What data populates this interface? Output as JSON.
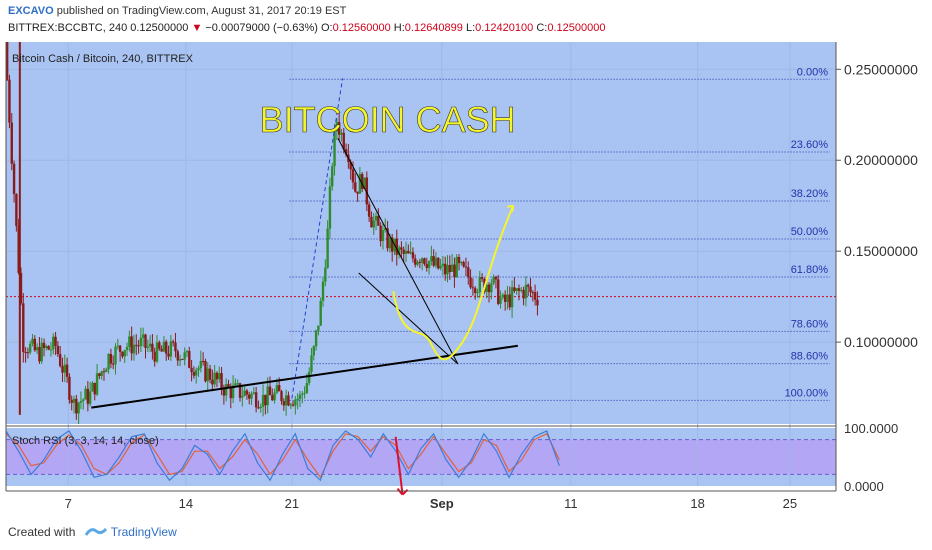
{
  "header": {
    "author": "EXCAVO",
    "published": " published on TradingView.com, August 31, 2017 20:19 EST",
    "symbol": "BITTREX:BCCBTC, 240  0.12500000",
    "change": " −0.00079000 (−0.63%)",
    "o_label": " O:",
    "o_value": "0.12560000",
    "h_label": " H:",
    "h_value": "0.12640899",
    "l_label": " L:",
    "l_value": "0.12420100",
    "c_label": " C:",
    "c_value": "0.12500000"
  },
  "chart_data": {
    "type": "candlestick",
    "title": "BITCOIN CASH",
    "pane_label": "Bitcoin Cash / Bitcoin, 240, BITTREX",
    "colors": {
      "background": "#a9c4f2",
      "up": "#2e8b2e",
      "down": "#8b1a1a",
      "title": "#f5f52a",
      "fib": "#2233aa",
      "projection": "#f5f52a",
      "stoch_band": "#b3a6f5",
      "stoch_k": "#3d7dd8",
      "stoch_d": "#e0623a",
      "arrow": "#e0102a",
      "last_price_line": "#d0021b"
    },
    "ylim": [
      0.055,
      0.265
    ],
    "y_ticks": [
      "0.25000000",
      "0.20000000",
      "0.15000000",
      "0.10000000"
    ],
    "x_ticks": [
      "7",
      "14",
      "21",
      "Sep",
      "11",
      "18",
      "25"
    ],
    "fib_levels": [
      {
        "label": "0.00%",
        "price": 0.2445
      },
      {
        "label": "23.60%",
        "price": 0.2045
      },
      {
        "label": "38.20%",
        "price": 0.1776
      },
      {
        "label": "50.00%",
        "price": 0.1567
      },
      {
        "label": "61.80%",
        "price": 0.1358
      },
      {
        "label": "78.60%",
        "price": 0.1059
      },
      {
        "label": "88.60%",
        "price": 0.0882
      },
      {
        "label": "100.00%",
        "price": 0.068
      }
    ],
    "last_price": 0.125,
    "price_path": [
      [
        0,
        0.265
      ],
      [
        8,
        0.1
      ],
      [
        14,
        0.094
      ],
      [
        22,
        0.098
      ],
      [
        30,
        0.066
      ],
      [
        37,
        0.071
      ],
      [
        45,
        0.092
      ],
      [
        52,
        0.098
      ],
      [
        59,
        0.099
      ],
      [
        66,
        0.094
      ],
      [
        74,
        0.096
      ],
      [
        81,
        0.088
      ],
      [
        89,
        0.082
      ],
      [
        96,
        0.074
      ],
      [
        104,
        0.072
      ],
      [
        112,
        0.069
      ],
      [
        118,
        0.071
      ],
      [
        124,
        0.07
      ],
      [
        128,
        0.069
      ],
      [
        131,
        0.078
      ],
      [
        134,
        0.095
      ],
      [
        137,
        0.12
      ],
      [
        140,
        0.16
      ],
      [
        142,
        0.2
      ],
      [
        144,
        0.222
      ],
      [
        146,
        0.214
      ],
      [
        149,
        0.205
      ],
      [
        152,
        0.184
      ],
      [
        155,
        0.19
      ],
      [
        159,
        0.168
      ],
      [
        163,
        0.16
      ],
      [
        167,
        0.154
      ],
      [
        171,
        0.149
      ],
      [
        176,
        0.146
      ],
      [
        181,
        0.148
      ],
      [
        186,
        0.142
      ],
      [
        191,
        0.139
      ],
      [
        196,
        0.141
      ],
      [
        201,
        0.136
      ],
      [
        206,
        0.131
      ],
      [
        211,
        0.134
      ],
      [
        216,
        0.121
      ],
      [
        221,
        0.126
      ],
      [
        226,
        0.129
      ],
      [
        231,
        0.125
      ]
    ],
    "stoch_rsi": {
      "label": "Stoch RSI (3, 3, 14, 14, close)",
      "ylim": [
        0,
        100
      ],
      "band": [
        20,
        80
      ],
      "ticks": [
        "100.0000",
        "0.0000"
      ],
      "k": [
        95,
        60,
        20,
        45,
        80,
        95,
        60,
        15,
        20,
        50,
        85,
        90,
        40,
        10,
        30,
        70,
        55,
        20,
        60,
        90,
        40,
        10,
        55,
        90,
        30,
        10,
        70,
        95,
        80,
        50,
        90,
        60,
        20,
        65,
        90,
        45,
        15,
        45,
        90,
        60,
        15,
        55,
        85,
        95,
        35
      ],
      "d": [
        90,
        70,
        35,
        40,
        70,
        88,
        70,
        30,
        20,
        40,
        75,
        88,
        55,
        20,
        25,
        60,
        60,
        30,
        50,
        80,
        55,
        20,
        45,
        80,
        45,
        15,
        60,
        90,
        85,
        60,
        85,
        70,
        30,
        55,
        85,
        55,
        25,
        40,
        80,
        70,
        25,
        45,
        80,
        90,
        45
      ]
    },
    "x_range": [
      0,
      360
    ],
    "x_tick_positions": [
      27,
      78,
      124,
      189,
      245,
      300,
      340
    ]
  },
  "footer": {
    "created_with": "Created with",
    "brand": "TradingView"
  }
}
